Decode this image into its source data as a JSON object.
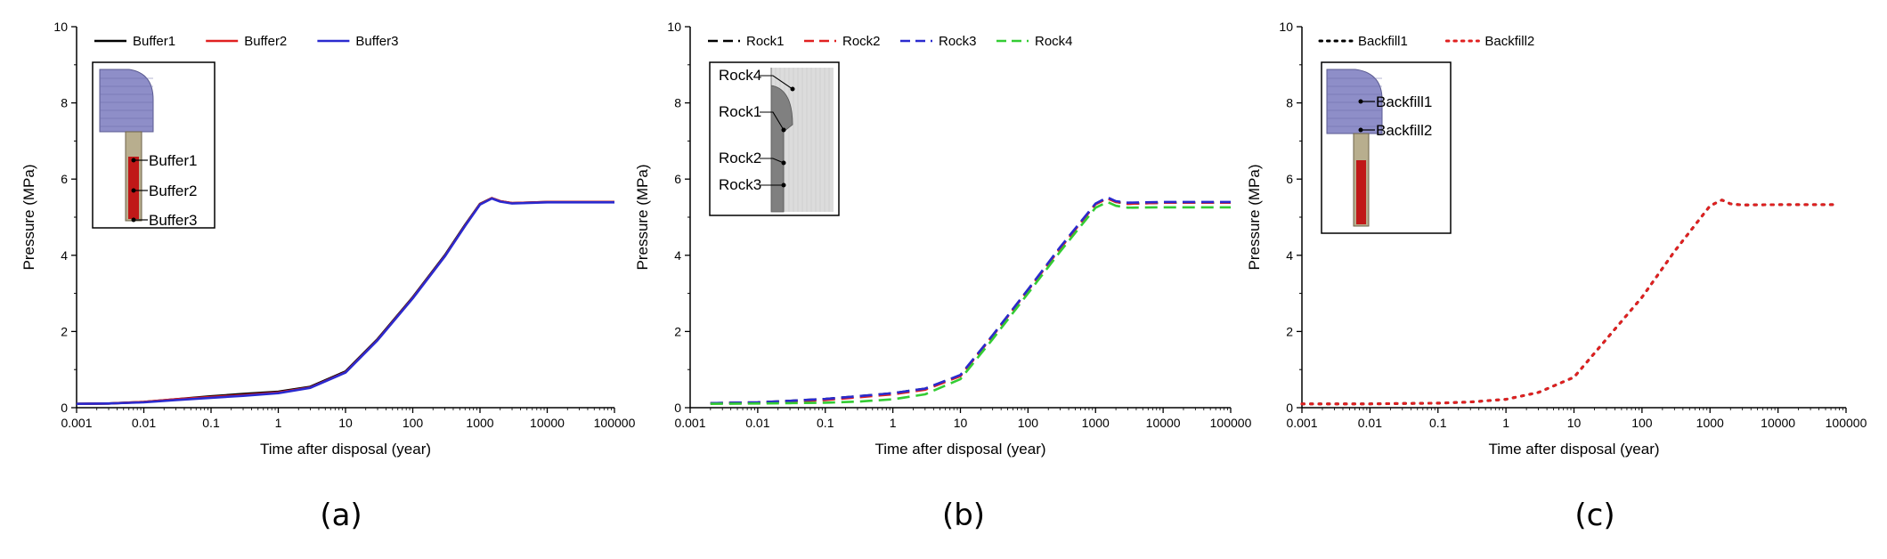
{
  "chart_data": [
    {
      "panel": "(a)",
      "type": "line",
      "xscale": "log",
      "xlim": [
        0.001,
        100000
      ],
      "ylim": [
        0,
        10
      ],
      "xlabel": "Time after disposal (year)",
      "ylabel": "Pressure (MPa)",
      "xticks": [
        "0.001",
        "0.01",
        "0.1",
        "1",
        "10",
        "100",
        "1000",
        "10000",
        "100000"
      ],
      "yticks": [
        "0",
        "2",
        "4",
        "6",
        "8",
        "10"
      ],
      "legend_position": "top-left",
      "series": [
        {
          "name": "Buffer1",
          "color": "#000000",
          "dash": "solid",
          "x": [
            0.001,
            0.003,
            0.01,
            0.03,
            0.1,
            0.3,
            1,
            3,
            10,
            30,
            100,
            300,
            600,
            1000,
            1500,
            2000,
            3000,
            10000,
            100000
          ],
          "y": [
            0.1,
            0.11,
            0.15,
            0.22,
            0.3,
            0.36,
            0.42,
            0.55,
            0.95,
            1.8,
            2.9,
            4.0,
            4.8,
            5.35,
            5.5,
            5.42,
            5.37,
            5.4,
            5.4
          ]
        },
        {
          "name": "Buffer2",
          "color": "#e02020",
          "dash": "solid",
          "x": [
            0.001,
            0.003,
            0.01,
            0.03,
            0.1,
            0.3,
            1,
            3,
            10,
            30,
            100,
            300,
            600,
            1000,
            1500,
            2000,
            3000,
            10000,
            100000
          ],
          "y": [
            0.1,
            0.11,
            0.15,
            0.22,
            0.28,
            0.33,
            0.4,
            0.53,
            0.93,
            1.78,
            2.88,
            3.98,
            4.78,
            5.34,
            5.5,
            5.42,
            5.37,
            5.4,
            5.4
          ]
        },
        {
          "name": "Buffer3",
          "color": "#2a2acf",
          "dash": "solid",
          "x": [
            0.001,
            0.003,
            0.01,
            0.03,
            0.1,
            0.3,
            1,
            3,
            10,
            30,
            100,
            300,
            600,
            1000,
            1500,
            2000,
            3000,
            10000,
            100000
          ],
          "y": [
            0.1,
            0.11,
            0.14,
            0.2,
            0.26,
            0.31,
            0.38,
            0.52,
            0.92,
            1.77,
            2.87,
            3.97,
            4.77,
            5.33,
            5.49,
            5.41,
            5.36,
            5.39,
            5.39
          ]
        }
      ],
      "inset_labels": [
        "Buffer1",
        "Buffer2",
        "Buffer3"
      ]
    },
    {
      "panel": "(b)",
      "type": "line",
      "xscale": "log",
      "xlim": [
        0.001,
        100000
      ],
      "ylim": [
        0,
        10
      ],
      "xlabel": "Time after disposal (year)",
      "ylabel": "Pressure (MPa)",
      "xticks": [
        "0.001",
        "0.01",
        "0.1",
        "1",
        "10",
        "100",
        "1000",
        "10000",
        "100000"
      ],
      "yticks": [
        "0",
        "2",
        "4",
        "6",
        "8",
        "10"
      ],
      "legend_position": "top-left",
      "series": [
        {
          "name": "Rock1",
          "color": "#000000",
          "dash": "dashed",
          "x": [
            0.002,
            0.01,
            0.03,
            0.1,
            0.3,
            1,
            3,
            10,
            30,
            100,
            300,
            1000,
            1500,
            2000,
            3000,
            10000,
            100000
          ],
          "y": [
            0.12,
            0.14,
            0.18,
            0.23,
            0.3,
            0.38,
            0.5,
            0.85,
            1.9,
            3.1,
            4.2,
            5.35,
            5.5,
            5.4,
            5.35,
            5.38,
            5.38
          ]
        },
        {
          "name": "Rock2",
          "color": "#e02020",
          "dash": "dashed",
          "x": [
            0.002,
            0.01,
            0.03,
            0.1,
            0.3,
            1,
            3,
            10,
            30,
            100,
            300,
            1000,
            1500,
            2000,
            3000,
            10000,
            100000
          ],
          "y": [
            0.12,
            0.13,
            0.16,
            0.2,
            0.27,
            0.35,
            0.47,
            0.83,
            1.88,
            3.08,
            4.18,
            5.34,
            5.49,
            5.4,
            5.35,
            5.38,
            5.38
          ]
        },
        {
          "name": "Rock3",
          "color": "#2a2acf",
          "dash": "dashed",
          "x": [
            0.002,
            0.01,
            0.03,
            0.1,
            0.3,
            1,
            3,
            10,
            30,
            100,
            300,
            1000,
            1500,
            2000,
            3000,
            10000,
            100000
          ],
          "y": [
            0.12,
            0.14,
            0.18,
            0.23,
            0.3,
            0.38,
            0.5,
            0.86,
            1.9,
            3.1,
            4.22,
            5.36,
            5.52,
            5.42,
            5.38,
            5.4,
            5.4
          ]
        },
        {
          "name": "Rock4",
          "color": "#33cc33",
          "dash": "dashed",
          "x": [
            0.002,
            0.01,
            0.03,
            0.1,
            0.3,
            1,
            3,
            10,
            30,
            100,
            300,
            1000,
            1500,
            2000,
            3000,
            10000,
            100000
          ],
          "y": [
            0.1,
            0.11,
            0.12,
            0.13,
            0.16,
            0.22,
            0.35,
            0.75,
            1.8,
            3.0,
            4.1,
            5.25,
            5.4,
            5.3,
            5.25,
            5.26,
            5.26
          ]
        }
      ],
      "inset_labels": [
        "Rock4",
        "Rock1",
        "Rock2",
        "Rock3"
      ]
    },
    {
      "panel": "(c)",
      "type": "line",
      "xscale": "log",
      "xlim": [
        0.001,
        100000
      ],
      "ylim": [
        0,
        10
      ],
      "xlabel": "Time after disposal (year)",
      "ylabel": "Pressure (MPa)",
      "xticks": [
        "0.001",
        "0.01",
        "0.1",
        "1",
        "10",
        "100",
        "1000",
        "10000",
        "100000"
      ],
      "yticks": [
        "0",
        "2",
        "4",
        "6",
        "8",
        "10"
      ],
      "legend_position": "top-left",
      "series": [
        {
          "name": "Backfill1",
          "color": "#000000",
          "dash": "dotted",
          "x": [
            0.001,
            0.01,
            0.1,
            0.3,
            1,
            3,
            10,
            30,
            100,
            300,
            1000,
            1500,
            2000,
            3000,
            10000,
            70000
          ],
          "y": [
            0.1,
            0.1,
            0.12,
            0.15,
            0.22,
            0.4,
            0.8,
            1.8,
            2.9,
            4.1,
            5.3,
            5.45,
            5.35,
            5.32,
            5.33,
            5.33
          ]
        },
        {
          "name": "Backfill2",
          "color": "#e02020",
          "dash": "dotted",
          "x": [
            0.001,
            0.01,
            0.1,
            0.3,
            1,
            3,
            10,
            30,
            100,
            300,
            1000,
            1500,
            2000,
            3000,
            10000,
            70000
          ],
          "y": [
            0.1,
            0.1,
            0.12,
            0.15,
            0.22,
            0.4,
            0.8,
            1.8,
            2.9,
            4.1,
            5.3,
            5.45,
            5.35,
            5.32,
            5.33,
            5.33
          ]
        }
      ],
      "inset_labels": [
        "Backfill1",
        "Backfill2"
      ]
    }
  ]
}
